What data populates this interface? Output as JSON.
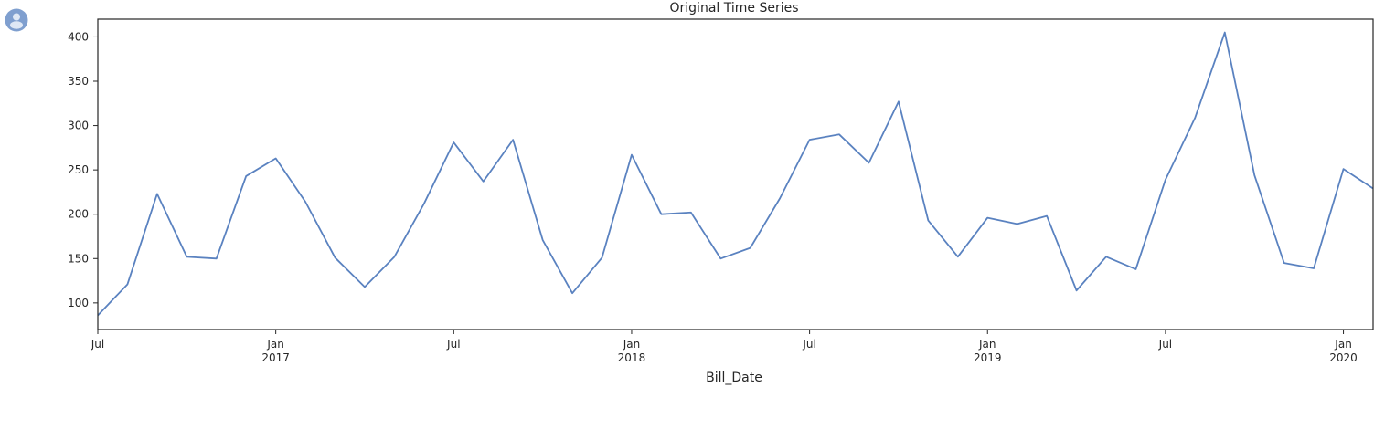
{
  "avatar": {
    "icon": "user-avatar-icon",
    "color": "#7f9fcf"
  },
  "chart_data": {
    "type": "line",
    "title": "Original Time Series",
    "xlabel": "Bill_Date",
    "ylabel": "",
    "grid": false,
    "legend": false,
    "line_color": "#5a82c0",
    "ylim": [
      70,
      420
    ],
    "xlim": [
      "2016-07",
      "2020-02"
    ],
    "yticks": [
      100,
      150,
      200,
      250,
      300,
      350,
      400
    ],
    "xticks": [
      {
        "x": "2016-07",
        "label": "Jul",
        "sublabel": ""
      },
      {
        "x": "2017-01",
        "label": "Jan",
        "sublabel": "2017"
      },
      {
        "x": "2017-07",
        "label": "Jul",
        "sublabel": ""
      },
      {
        "x": "2018-01",
        "label": "Jan",
        "sublabel": "2018"
      },
      {
        "x": "2018-07",
        "label": "Jul",
        "sublabel": ""
      },
      {
        "x": "2019-01",
        "label": "Jan",
        "sublabel": "2019"
      },
      {
        "x": "2019-07",
        "label": "Jul",
        "sublabel": ""
      },
      {
        "x": "2020-01",
        "label": "Jan",
        "sublabel": "2020"
      }
    ],
    "series": [
      {
        "x": [
          "2016-07",
          "2016-08",
          "2016-09",
          "2016-10",
          "2016-11",
          "2016-12",
          "2017-01",
          "2017-02",
          "2017-03",
          "2017-04",
          "2017-05",
          "2017-06",
          "2017-07",
          "2017-08",
          "2017-09",
          "2017-10",
          "2017-11",
          "2017-12",
          "2018-01",
          "2018-02",
          "2018-03",
          "2018-04",
          "2018-05",
          "2018-06",
          "2018-07",
          "2018-08",
          "2018-09",
          "2018-10",
          "2018-11",
          "2018-12",
          "2019-01",
          "2019-02",
          "2019-03",
          "2019-04",
          "2019-05",
          "2019-06",
          "2019-07",
          "2019-08",
          "2019-09",
          "2019-10",
          "2019-11",
          "2019-12",
          "2020-01",
          "2020-02"
        ],
        "values": [
          86,
          121,
          223,
          152,
          150,
          243,
          263,
          214,
          151,
          118,
          152,
          212,
          281,
          237,
          284,
          171,
          111,
          151,
          267,
          200,
          202,
          150,
          162,
          218,
          284,
          290,
          258,
          327,
          193,
          152,
          196,
          189,
          198,
          114,
          152,
          138,
          239,
          309,
          405,
          244,
          145,
          139,
          251,
          229
        ]
      }
    ]
  }
}
